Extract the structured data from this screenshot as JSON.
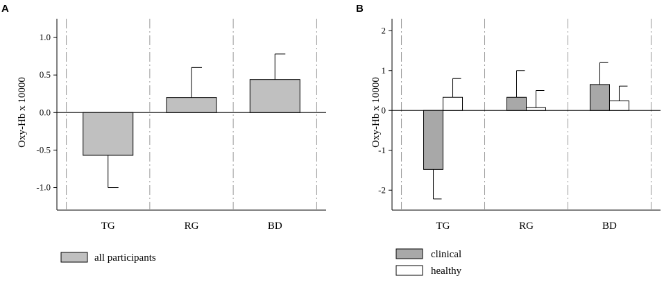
{
  "chart_data": [
    {
      "panel": "A",
      "type": "bar",
      "title": "",
      "xlabel": "",
      "ylabel": "Oxy-Hb x 10000",
      "categories": [
        "TG",
        "RG",
        "BD"
      ],
      "ylim": [
        -1.3,
        1.25
      ],
      "yticks": [
        "-1.0",
        "-0.5",
        "0.0",
        "0.5",
        "1.0"
      ],
      "grid": false,
      "legend_position": "below",
      "series": [
        {
          "name": "all participants",
          "color": "#c0c0c0",
          "values": [
            -0.57,
            0.2,
            0.44
          ],
          "errors": [
            0.43,
            0.4,
            0.34
          ]
        }
      ]
    },
    {
      "panel": "B",
      "type": "bar",
      "title": "",
      "xlabel": "",
      "ylabel": "Oxy-Hb x 10000",
      "categories": [
        "TG",
        "RG",
        "BD"
      ],
      "ylim": [
        -2.5,
        2.3
      ],
      "yticks": [
        "-2",
        "-1",
        "0",
        "1",
        "2"
      ],
      "grid": false,
      "legend_position": "below",
      "series": [
        {
          "name": "clinical",
          "color": "#a8a8a8",
          "values": [
            -1.48,
            0.33,
            0.65
          ],
          "errors": [
            0.74,
            0.67,
            0.55
          ]
        },
        {
          "name": "healthy",
          "color": "#ffffff",
          "values": [
            0.33,
            0.07,
            0.24
          ],
          "errors": [
            0.47,
            0.43,
            0.37
          ]
        }
      ]
    }
  ]
}
